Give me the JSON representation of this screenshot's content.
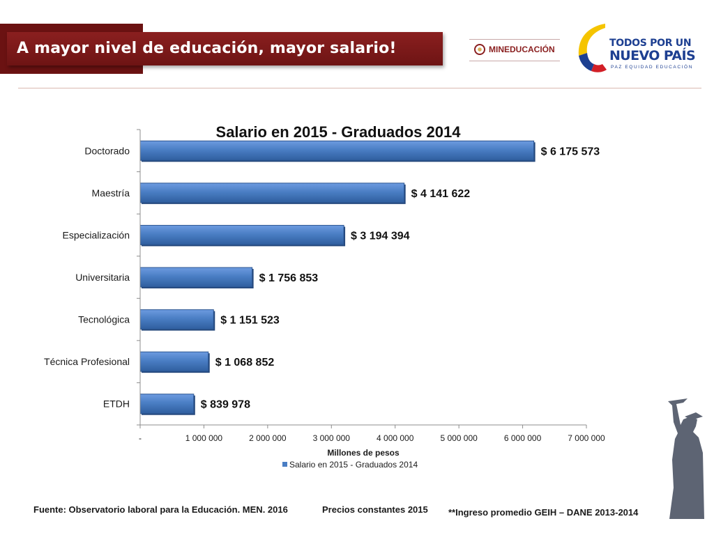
{
  "header": {
    "title": "A mayor nivel de educación, mayor salario!",
    "logo_mineducacion": "MINEDUCACIÓN",
    "logo_tpn_line1": "TODOS POR UN",
    "logo_tpn_line2": "NUEVO PAÍS",
    "logo_tpn_line3": "PAZ  EQUIDAD  EDUCACIÓN"
  },
  "chart_data": {
    "type": "bar",
    "orientation": "horizontal",
    "title": "Salario en 2015 - Graduados 2014",
    "xlabel": "Millones de pesos",
    "ylabel": "",
    "categories": [
      "Doctorado",
      "Maestría",
      "Especialización",
      "Universitaria",
      "Tecnológica",
      "Técnica Profesional",
      "ETDH"
    ],
    "values": [
      6175573,
      4141622,
      3194394,
      1756853,
      1151523,
      1068852,
      839978
    ],
    "value_labels": [
      "$ 6 175 573",
      "$ 4 141 622",
      "$ 3 194 394",
      "$ 1 756 853",
      "$ 1 151 523",
      "$ 1 068 852",
      "$ 839 978"
    ],
    "xlim": [
      0,
      7000000
    ],
    "xticks": [
      0,
      1000000,
      2000000,
      3000000,
      4000000,
      5000000,
      6000000,
      7000000
    ],
    "xtick_labels": [
      "-",
      "1 000 000",
      "2 000 000",
      "3 000 000",
      "4 000 000",
      "5 000 000",
      "6 000 000",
      "7 000 000"
    ],
    "legend": {
      "label": "Salario en 2015 - Graduados 2014",
      "position": "bottom"
    },
    "bar_color": "#4a7ec4",
    "grid": false
  },
  "footer": {
    "source": "Fuente: Observatorio laboral para la Educación. MEN. 2016",
    "prices": "Precios constantes  2015",
    "note": "**Ingreso promedio GEIH – DANE 2013-2014"
  }
}
